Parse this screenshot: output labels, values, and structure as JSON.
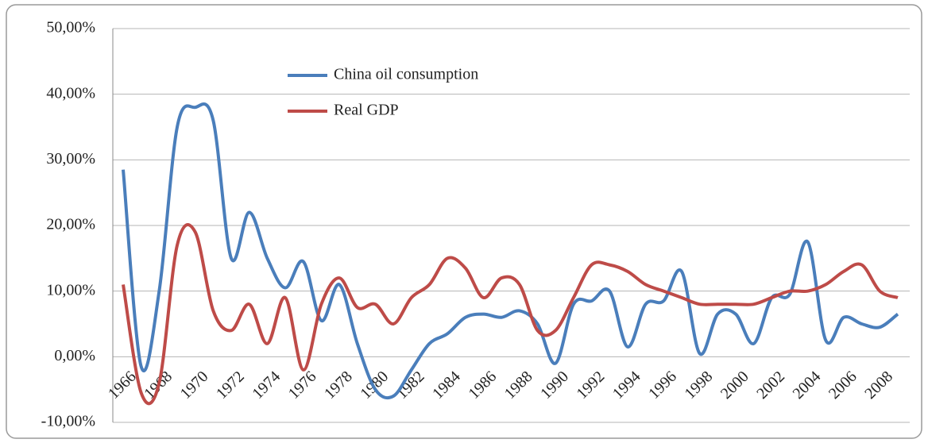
{
  "chart_data": {
    "type": "line",
    "categories": [
      "1966",
      null,
      "1968",
      null,
      "1970",
      null,
      "1972",
      null,
      "1974",
      null,
      "1976",
      null,
      "1978",
      null,
      "1980",
      null,
      "1982",
      null,
      "1984",
      null,
      "1986",
      null,
      "1988",
      null,
      "1990",
      null,
      "1992",
      null,
      "1994",
      null,
      "1996",
      null,
      "1998",
      null,
      "2000",
      null,
      "2002",
      null,
      "2004",
      null,
      "2006",
      null,
      "2008",
      null
    ],
    "series": [
      {
        "name": "China oil consumption",
        "color": "#4a7ebb",
        "values": [
          28.5,
          -1.5,
          10,
          35,
          38,
          36,
          15,
          22,
          15,
          10.5,
          14.5,
          5.5,
          11,
          2,
          -5,
          -6,
          -2,
          2,
          3.5,
          6,
          6.5,
          6,
          7,
          5,
          -1,
          8,
          8.5,
          10,
          1.5,
          8,
          8.5,
          13,
          0.5,
          6.5,
          6.5,
          2,
          9,
          9.5,
          17.5,
          2.5,
          6,
          5,
          4.5,
          6.5
        ]
      },
      {
        "name": "Real GDP",
        "color": "#be4b48",
        "values": [
          11,
          -5.5,
          -4,
          17,
          19,
          7,
          4,
          8,
          2,
          9,
          -2,
          8,
          12,
          7.5,
          8,
          5,
          9,
          11,
          15,
          13.5,
          9,
          12,
          11,
          4,
          4,
          9,
          14,
          14,
          13,
          11,
          10,
          9,
          8,
          8,
          8,
          8,
          9,
          10,
          10,
          11,
          13,
          14,
          10,
          9
        ]
      }
    ],
    "ylim": [
      -10,
      50
    ],
    "yticks": [
      {
        "value": -10,
        "label": "-10,00%"
      },
      {
        "value": 0,
        "label": "0,00%"
      },
      {
        "value": 10,
        "label": "10,00%"
      },
      {
        "value": 20,
        "label": "20,00%"
      },
      {
        "value": 30,
        "label": "30,00%"
      },
      {
        "value": 40,
        "label": "40,00%"
      },
      {
        "value": 50,
        "label": "50,00%"
      }
    ],
    "grid": true
  }
}
